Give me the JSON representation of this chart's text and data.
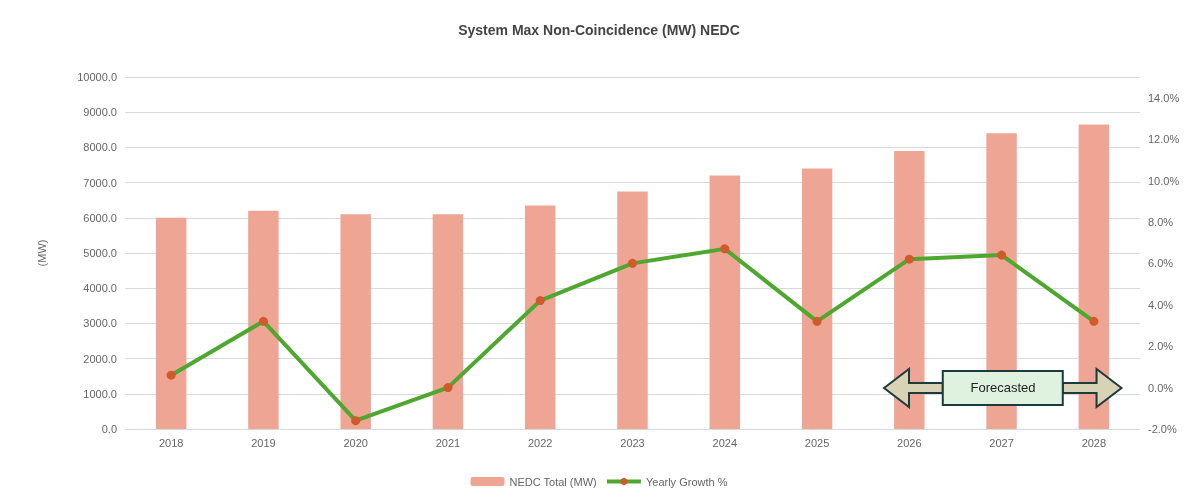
{
  "chart_data": {
    "type": "bar",
    "title": "System Max Non-Coincidence (MW) NEDC",
    "ylabel": "(MW)",
    "categories": [
      "2018",
      "2019",
      "2020",
      "2021",
      "2022",
      "2023",
      "2024",
      "2025",
      "2026",
      "2027",
      "2028"
    ],
    "series": [
      {
        "name": "NEDC Total (MW)",
        "color": "#eea594",
        "values": [
          6000,
          6200,
          6100,
          6100,
          6350,
          6750,
          7200,
          7400,
          7900,
          8400,
          8650
        ]
      },
      {
        "name": "Yearly Growth %",
        "type": "line",
        "axis": "y2",
        "color": "#4ea72e",
        "marker": "circle",
        "colors": [
          "#d05a2a",
          "#d05a2a",
          "#d05a2a",
          "#d05a2a",
          "#d05a2a",
          "#d05a2a",
          "#d05a2a",
          "#d05a2a",
          "#d05a2a",
          "#d05a2a",
          "#d05a2a"
        ],
        "values": [
          0.6,
          3.2,
          -1.6,
          0.0,
          4.2,
          6.0,
          6.7,
          3.2,
          6.2,
          6.4,
          3.2
        ]
      }
    ],
    "ylim": [
      0,
      10000
    ],
    "yticks": [
      {
        "value": 0,
        "label": "0.0"
      },
      {
        "value": 1000,
        "label": "1000.0"
      },
      {
        "value": 2000,
        "label": "2000.0"
      },
      {
        "value": 3000,
        "label": "3000.0"
      },
      {
        "value": 4000,
        "label": "4000.0"
      },
      {
        "value": 5000,
        "label": "5000.0"
      },
      {
        "value": 6000,
        "label": "6000.0"
      },
      {
        "value": 7000,
        "label": "7000.0"
      },
      {
        "value": 8000,
        "label": "8000.0"
      },
      {
        "value": 9000,
        "label": "9000.0"
      },
      {
        "value": 10000,
        "label": "10000.0"
      }
    ],
    "y2lim": [
      -2,
      15
    ],
    "y2ticks": [
      {
        "value": -2,
        "label": "-2.0%"
      },
      {
        "value": 0,
        "label": "0.0%"
      },
      {
        "value": 2,
        "label": "2.0%"
      },
      {
        "value": 4,
        "label": "4.0%"
      },
      {
        "value": 6,
        "label": "6.0%"
      },
      {
        "value": 8,
        "label": "8.0%"
      },
      {
        "value": 10,
        "label": "10.0%"
      },
      {
        "value": 12,
        "label": "12.0%"
      },
      {
        "value": 14,
        "label": "14.0%"
      }
    ],
    "grid": "y",
    "legend": "bottom",
    "annotations": [
      "Forecasted"
    ]
  }
}
